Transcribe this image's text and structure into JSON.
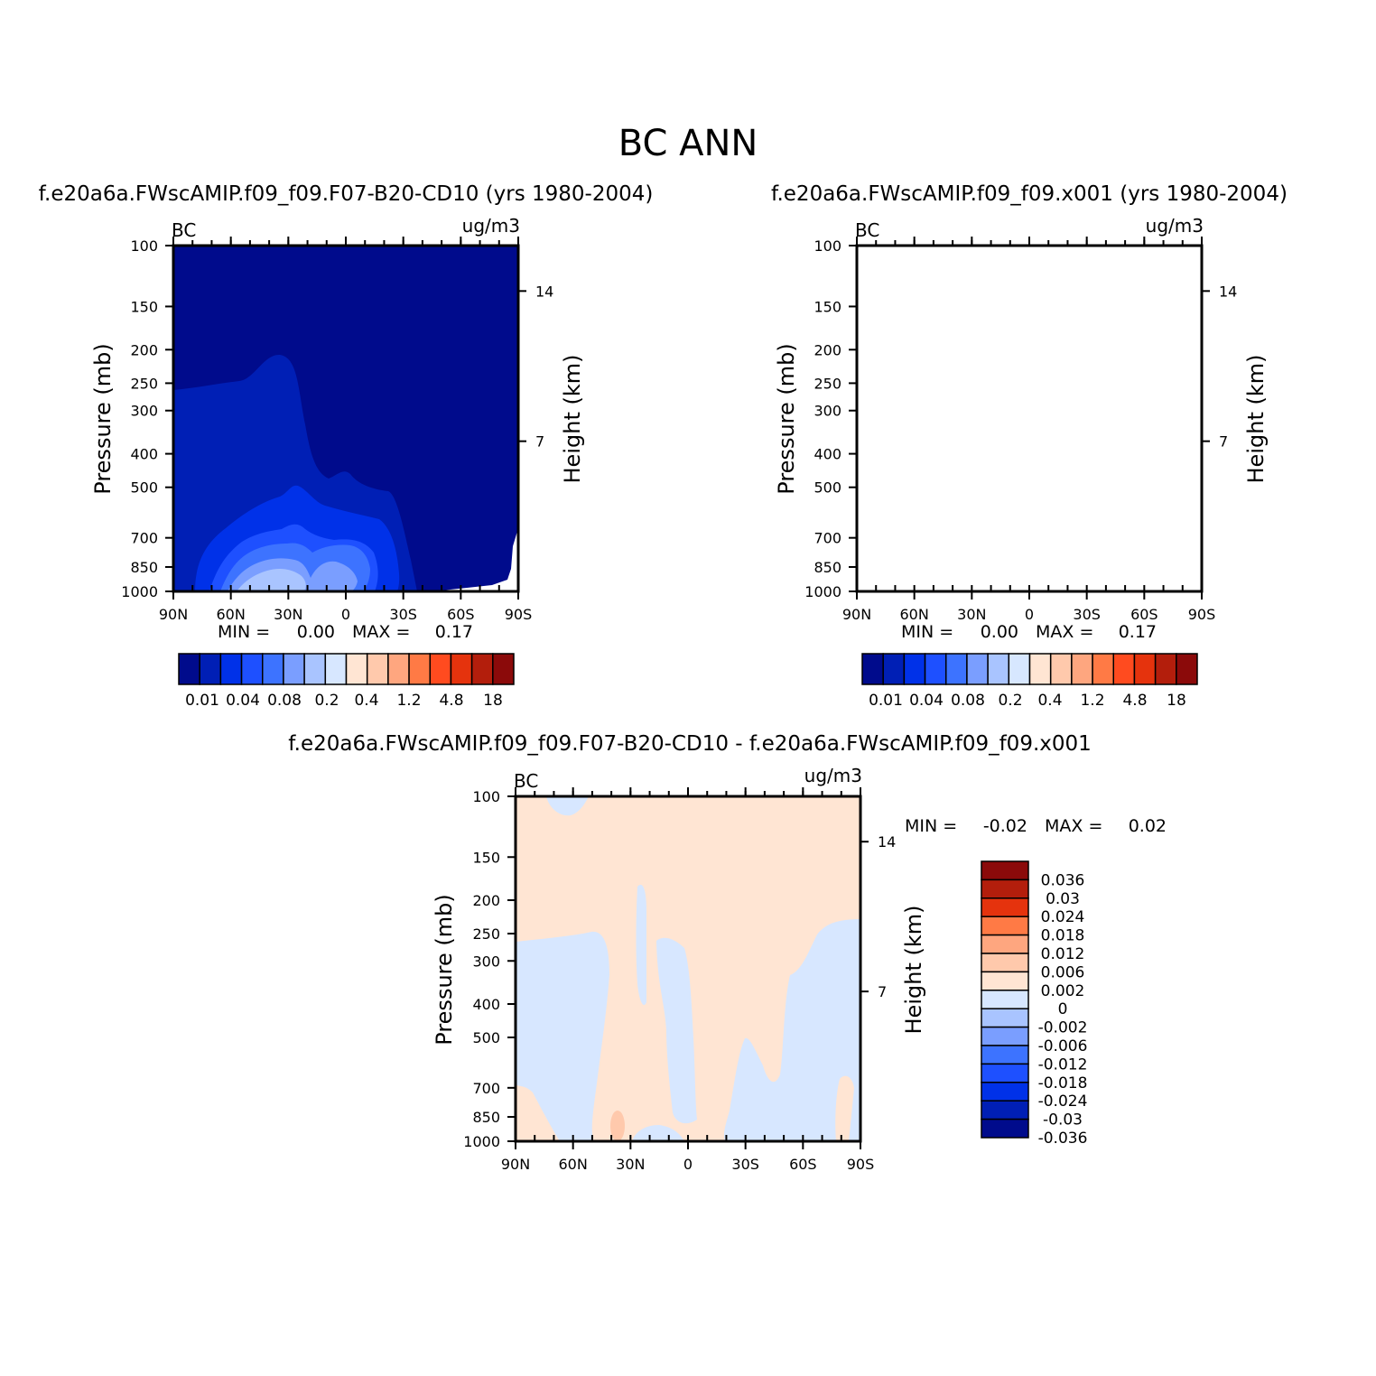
{
  "page": {
    "title": "BC  ANN"
  },
  "colors": {
    "seq_scale": [
      "#000b8c",
      "#001fb5",
      "#0031e8",
      "#1e50ff",
      "#3d73ff",
      "#7a9eff",
      "#a9c4ff",
      "#d7e7ff",
      "#ffe5d3",
      "#ffc9ac",
      "#fea67f",
      "#ff7a45",
      "#ff4b1f",
      "#e5330d",
      "#b31e0c",
      "#8b0a0a"
    ],
    "diff_scale": [
      "#000b8c",
      "#001fb5",
      "#0031e8",
      "#1e50ff",
      "#3d73ff",
      "#7a9eff",
      "#a9c4ff",
      "#d7e7ff",
      "#ffe5d3",
      "#ffc9ac",
      "#fea67f",
      "#ff7a45",
      "#e5330d",
      "#b31e0c",
      "#8b0a0a"
    ],
    "panel1_fills": [
      "#000b8c",
      "#001fb5",
      "#0031e8",
      "#1e50ff",
      "#3d73ff",
      "#7a9eff",
      "#a9c4ff"
    ],
    "diff_fills": [
      "#ffe5d3",
      "#d7e7ff",
      "#ffc9ac"
    ]
  },
  "chart_data": [
    {
      "type": "contour",
      "name": "control",
      "title": "f.e20a6a.FWscAMIP.f09_f09.F07-B20-CD10 (yrs 1980-2004)",
      "variable": "BC",
      "units": "ug/m3",
      "xlabel": "",
      "ylabel": "Pressure (mb)",
      "ylabel_right": "Height (km)",
      "x_ticks": [
        "90N",
        "60N",
        "30N",
        "0",
        "30S",
        "60S",
        "90S"
      ],
      "x_range": [
        90,
        -90
      ],
      "y_ticks": [
        100,
        150,
        200,
        250,
        300,
        400,
        500,
        700,
        850,
        1000
      ],
      "y_range_mb": [
        100,
        1000
      ],
      "y_scale": "log",
      "height_ticks_km": [
        14,
        7
      ],
      "min_label": "MIN =",
      "min_value": "0.00",
      "max_label": "MAX =",
      "max_value": "0.17",
      "colorbar_labels": [
        "0.01",
        "0.04",
        "0.08",
        "0.2",
        "0.4",
        "1.2",
        "4.8",
        "18"
      ],
      "colorbar_orientation": "horizontal"
    },
    {
      "type": "contour",
      "name": "test",
      "title": "f.e20a6a.FWscAMIP.f09_f09.x001 (yrs 1980-2004)",
      "variable": "BC",
      "units": "ug/m3",
      "xlabel": "",
      "ylabel": "Pressure (mb)",
      "ylabel_right": "Height (km)",
      "x_ticks": [
        "90N",
        "60N",
        "30N",
        "0",
        "30S",
        "60S",
        "90S"
      ],
      "x_range": [
        90,
        -90
      ],
      "y_ticks": [
        100,
        150,
        200,
        250,
        300,
        400,
        500,
        700,
        850,
        1000
      ],
      "y_range_mb": [
        100,
        1000
      ],
      "y_scale": "log",
      "height_ticks_km": [
        14,
        7
      ],
      "min_label": "MIN =",
      "min_value": "0.00",
      "max_label": "MAX =",
      "max_value": "0.17",
      "colorbar_labels": [
        "0.01",
        "0.04",
        "0.08",
        "0.2",
        "0.4",
        "1.2",
        "4.8",
        "18"
      ],
      "colorbar_orientation": "horizontal"
    },
    {
      "type": "contour",
      "name": "difference",
      "title": "f.e20a6a.FWscAMIP.f09_f09.F07-B20-CD10 - f.e20a6a.FWscAMIP.f09_f09.x001",
      "variable": "BC",
      "units": "ug/m3",
      "xlabel": "",
      "ylabel": "Pressure (mb)",
      "ylabel_right": "Height (km)",
      "x_ticks": [
        "90N",
        "60N",
        "30N",
        "0",
        "30S",
        "60S",
        "90S"
      ],
      "x_range": [
        90,
        -90
      ],
      "y_ticks": [
        100,
        150,
        200,
        250,
        300,
        400,
        500,
        700,
        850,
        1000
      ],
      "y_range_mb": [
        100,
        1000
      ],
      "y_scale": "log",
      "height_ticks_km": [
        14,
        7
      ],
      "min_label": "MIN =",
      "min_value": "-0.02",
      "max_label": "MAX =",
      "max_value": "0.02",
      "colorbar_labels": [
        "0.036",
        "0.03",
        "0.024",
        "0.018",
        "0.012",
        "0.006",
        "0.002",
        "0",
        "-0.002",
        "-0.006",
        "-0.012",
        "-0.018",
        "-0.024",
        "-0.03",
        "-0.036"
      ],
      "colorbar_orientation": "vertical"
    }
  ]
}
